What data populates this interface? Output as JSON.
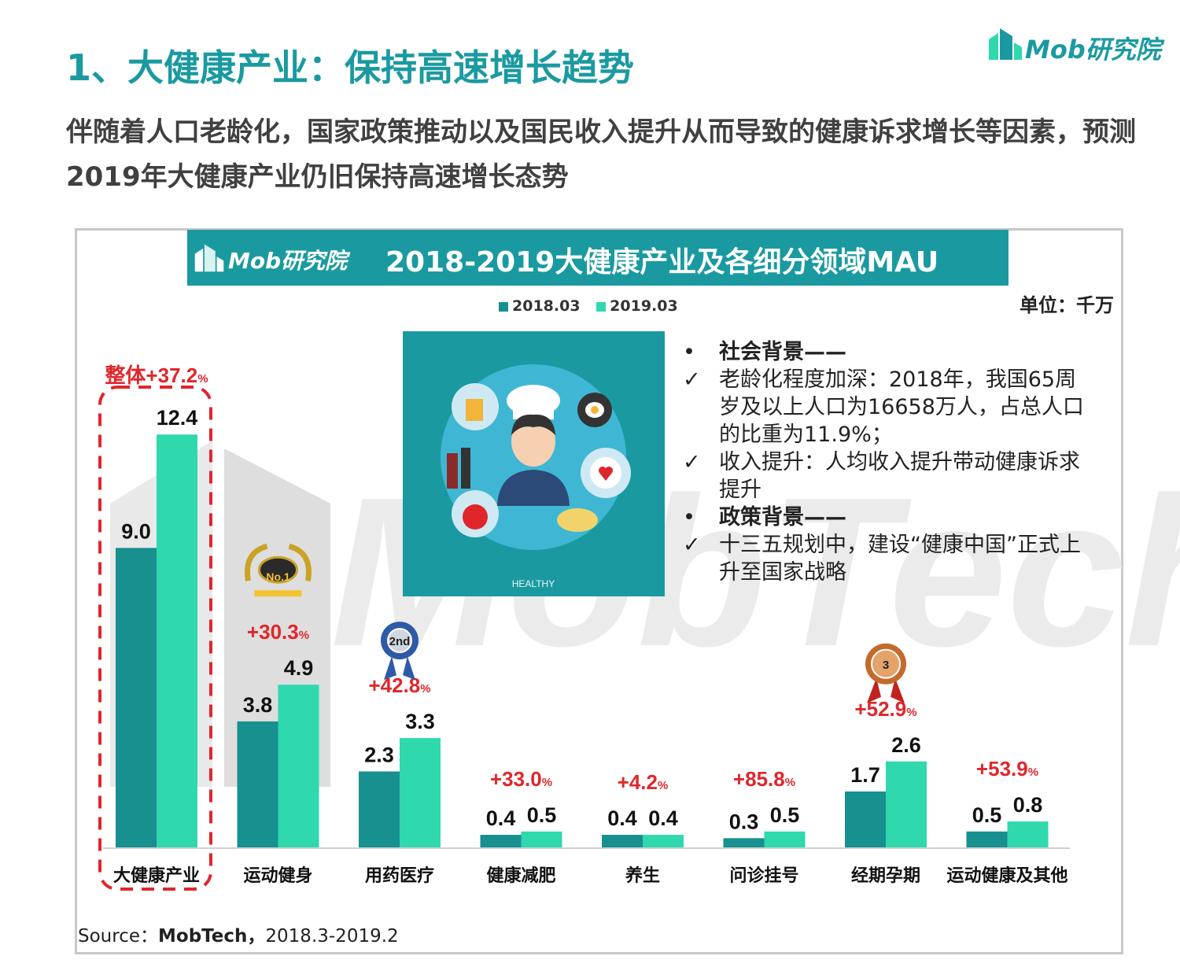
{
  "header": {
    "title": "1、大健康产业：保持高速增长趋势",
    "subtitle": "伴随着人口老龄化，国家政策推动以及国民收入提升从而导致的健康诉求增长等因素，预测2019年大健康产业仍旧保持高速增长态势",
    "logo_text": "Mob研究院"
  },
  "chart_header": {
    "logo_text": "Mob研究院",
    "title": "2018-2019大健康产业及各细分领域MAU"
  },
  "unit_label": "单位：千万",
  "watermark": "MobTech",
  "illustration_caption": "HEALTHY",
  "colors": {
    "series_2018": "#17908f",
    "series_2019": "#2fd8ad",
    "accent": "#1a9aa0",
    "growth": "#e0262b"
  },
  "notes": [
    {
      "mark": "•",
      "text": "社会背景——",
      "bold": true
    },
    {
      "mark": "✓",
      "text": "老龄化程度加深：2018年，我国65周岁及以上人口为16658万人，占总人口的比重为11.9%；"
    },
    {
      "mark": "✓",
      "text": "收入提升：人均收入提升带动健康诉求提升"
    },
    {
      "mark": "•",
      "text": "政策背景——",
      "bold": true
    },
    {
      "mark": "✓",
      "text": "十三五规划中，建设“健康中国”正式上升至国家战略"
    }
  ],
  "source": {
    "prefix": "Source：",
    "name": "MobTech，",
    "period": "2018.3-2019.2"
  },
  "chart_data": {
    "type": "bar",
    "categories": [
      "大健康产业",
      "运动健身",
      "用药医疗",
      "健康减肥",
      "养生",
      "问诊挂号",
      "经期孕期",
      "运动健康及其他"
    ],
    "series": [
      {
        "name": "2018.03",
        "values": [
          9.0,
          3.8,
          2.3,
          0.4,
          0.4,
          0.3,
          1.7,
          0.5
        ]
      },
      {
        "name": "2019.03",
        "values": [
          12.4,
          4.9,
          3.3,
          0.5,
          0.4,
          0.5,
          2.6,
          0.8
        ]
      }
    ],
    "value_labels": [
      [
        "9.0",
        "3.8",
        "2.3",
        "0.4",
        "0.4",
        "0.3",
        "1.7",
        "0.5"
      ],
      [
        "12.4",
        "4.9",
        "3.3",
        "0.5",
        "0.4",
        "0.5",
        "2.6",
        "0.8"
      ]
    ],
    "growth_labels": [
      "+37.2",
      "+30.3",
      "+42.8",
      "+33.0",
      "+4.2",
      "+85.8",
      "+52.9",
      "+53.9"
    ],
    "growth_unit": "%",
    "overall_prefix": "整体",
    "highlight_category": "大健康产业",
    "ranks": [
      {
        "category": "运动健身",
        "label": "No.1"
      },
      {
        "category": "用药医疗",
        "label": "2nd"
      },
      {
        "category": "经期孕期",
        "label": "3"
      }
    ],
    "ylim": [
      0,
      13
    ],
    "legend_position": "top-center",
    "grid": false
  }
}
